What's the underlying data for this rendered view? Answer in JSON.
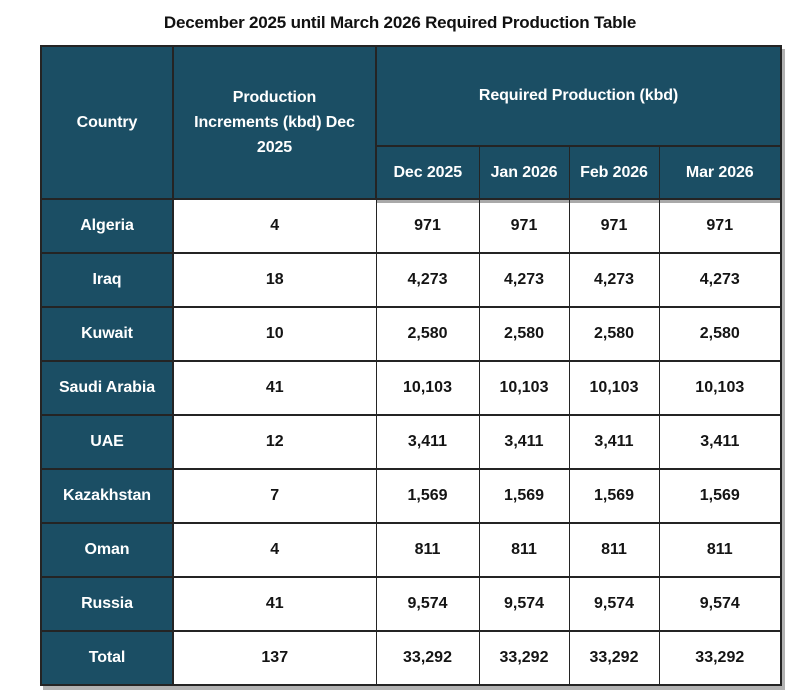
{
  "title": "December 2025 until March 2026 Required Production Table",
  "chart_data": {
    "type": "table",
    "title": "December 2025 until March 2026 Required Production Table",
    "header": {
      "country": "Country",
      "increments": "Production Increments (kbd) Dec 2025",
      "required_group": "Required Production (kbd)",
      "months": [
        "Dec 2025",
        "Jan 2026",
        "Feb 2026",
        "Mar 2026"
      ]
    },
    "rows": [
      {
        "country": "Algeria",
        "increment": 4,
        "required": [
          971,
          971,
          971,
          971
        ]
      },
      {
        "country": "Iraq",
        "increment": 18,
        "required": [
          4273,
          4273,
          4273,
          4273
        ]
      },
      {
        "country": "Kuwait",
        "increment": 10,
        "required": [
          2580,
          2580,
          2580,
          2580
        ]
      },
      {
        "country": "Saudi Arabia",
        "increment": 41,
        "required": [
          10103,
          10103,
          10103,
          10103
        ]
      },
      {
        "country": "UAE",
        "increment": 12,
        "required": [
          3411,
          3411,
          3411,
          3411
        ]
      },
      {
        "country": "Kazakhstan",
        "increment": 7,
        "required": [
          1569,
          1569,
          1569,
          1569
        ]
      },
      {
        "country": "Oman",
        "increment": 4,
        "required": [
          811,
          811,
          811,
          811
        ]
      },
      {
        "country": "Russia",
        "increment": 41,
        "required": [
          9574,
          9574,
          9574,
          9574
        ]
      },
      {
        "country": "Total",
        "increment": 137,
        "required": [
          33292,
          33292,
          33292,
          33292
        ]
      }
    ],
    "colors": {
      "header_bg": "#1b4e64",
      "header_text": "#ffffff",
      "border": "#242424",
      "cell_text": "#141414",
      "shadow": "#b2b2b2"
    }
  }
}
